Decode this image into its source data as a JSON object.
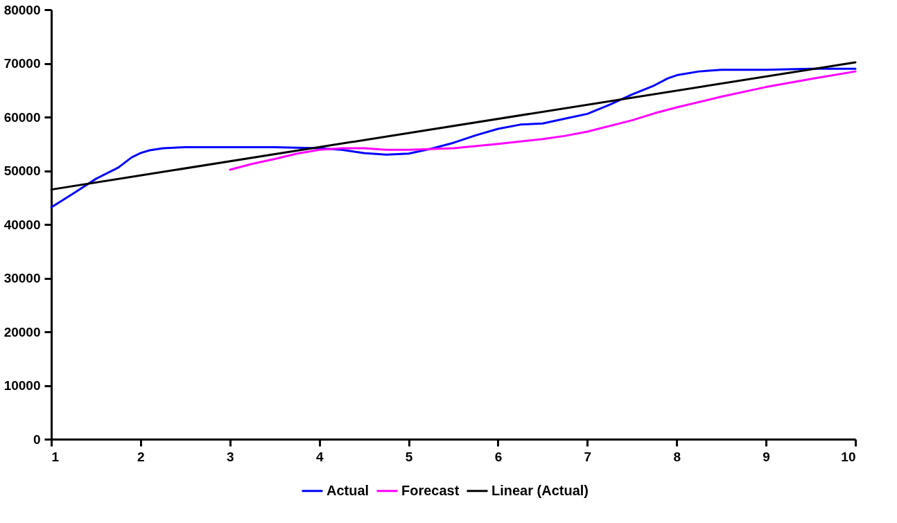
{
  "chart_data": {
    "type": "line",
    "xlim": [
      1,
      10
    ],
    "xticks": [
      1,
      2,
      3,
      4,
      5,
      6,
      7,
      8,
      9,
      10
    ],
    "ylim": [
      0,
      80000
    ],
    "yticks": [
      0,
      10000,
      20000,
      30000,
      40000,
      50000,
      60000,
      70000,
      80000
    ],
    "grid": false,
    "legend": "bottom",
    "marker": "none",
    "line_style": "solid",
    "series": [
      {
        "name": "Actual",
        "color": "#0000ff",
        "x": [
          1,
          1.25,
          1.5,
          1.75,
          1.9,
          2,
          2.1,
          2.25,
          2.5,
          3,
          3.5,
          4,
          4.25,
          4.5,
          4.75,
          5,
          5.25,
          5.5,
          5.75,
          6,
          6.25,
          6.5,
          6.75,
          7,
          7.25,
          7.5,
          7.75,
          7.9,
          8,
          8.25,
          8.5,
          9,
          9.5,
          10
        ],
        "values": [
          43200,
          45800,
          48500,
          50600,
          52500,
          53300,
          53800,
          54200,
          54400,
          54400,
          54400,
          54200,
          53900,
          53300,
          53000,
          53200,
          54100,
          55200,
          56600,
          57800,
          58600,
          58800,
          59700,
          60600,
          62300,
          64200,
          65900,
          67200,
          67800,
          68500,
          68800,
          68800,
          69000,
          69000
        ]
      },
      {
        "name": "Forecast",
        "color": "#ff00ff",
        "x": [
          3,
          3.25,
          3.5,
          3.75,
          4,
          4.25,
          4.5,
          4.75,
          5,
          5.5,
          6,
          6.5,
          6.75,
          7,
          7.5,
          7.75,
          8,
          8.5,
          9,
          9.5,
          10
        ],
        "values": [
          50200,
          51300,
          52200,
          53200,
          53900,
          54200,
          54200,
          53900,
          53900,
          54200,
          55000,
          55900,
          56500,
          57300,
          59400,
          60700,
          61800,
          63800,
          65600,
          67100,
          68500
        ]
      },
      {
        "name": "Linear (Actual)",
        "color": "#000000",
        "x": [
          1,
          10
        ],
        "values": [
          46500,
          70200
        ]
      }
    ]
  }
}
